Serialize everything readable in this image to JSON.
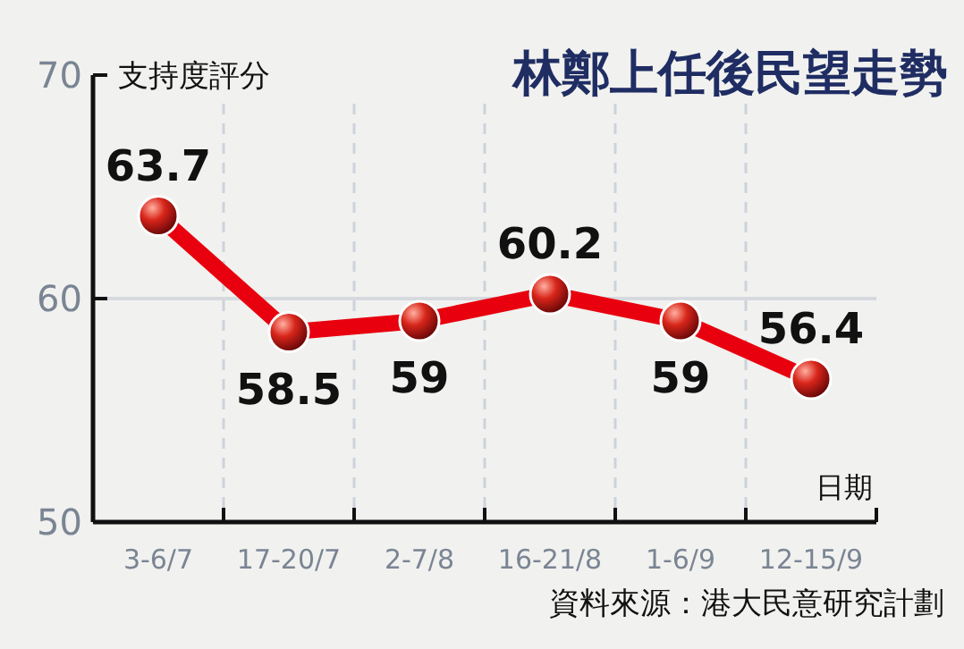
{
  "chart_data": {
    "type": "line",
    "title": "林鄭上任後民望走勢",
    "ylabel": "支持度評分",
    "xlabel": "日期",
    "categories": [
      "3-6/7",
      "17-20/7",
      "2-7/8",
      "16-21/8",
      "1-6/9",
      "12-15/9"
    ],
    "series": [
      {
        "color": "#e8000e",
        "values": [
          63.7,
          58.5,
          59,
          60.2,
          59,
          56.4
        ]
      }
    ],
    "ylim": [
      50,
      70
    ],
    "yticks": [
      50,
      60,
      70
    ],
    "grid": "x",
    "ref_lines": [
      {
        "axis": "y",
        "value": 60,
        "color": "#d6d9de"
      }
    ],
    "marker": "circle",
    "line_style": "solid",
    "data_labels": true,
    "annotations": [
      "資料來源：港大民意研究計劃"
    ]
  }
}
